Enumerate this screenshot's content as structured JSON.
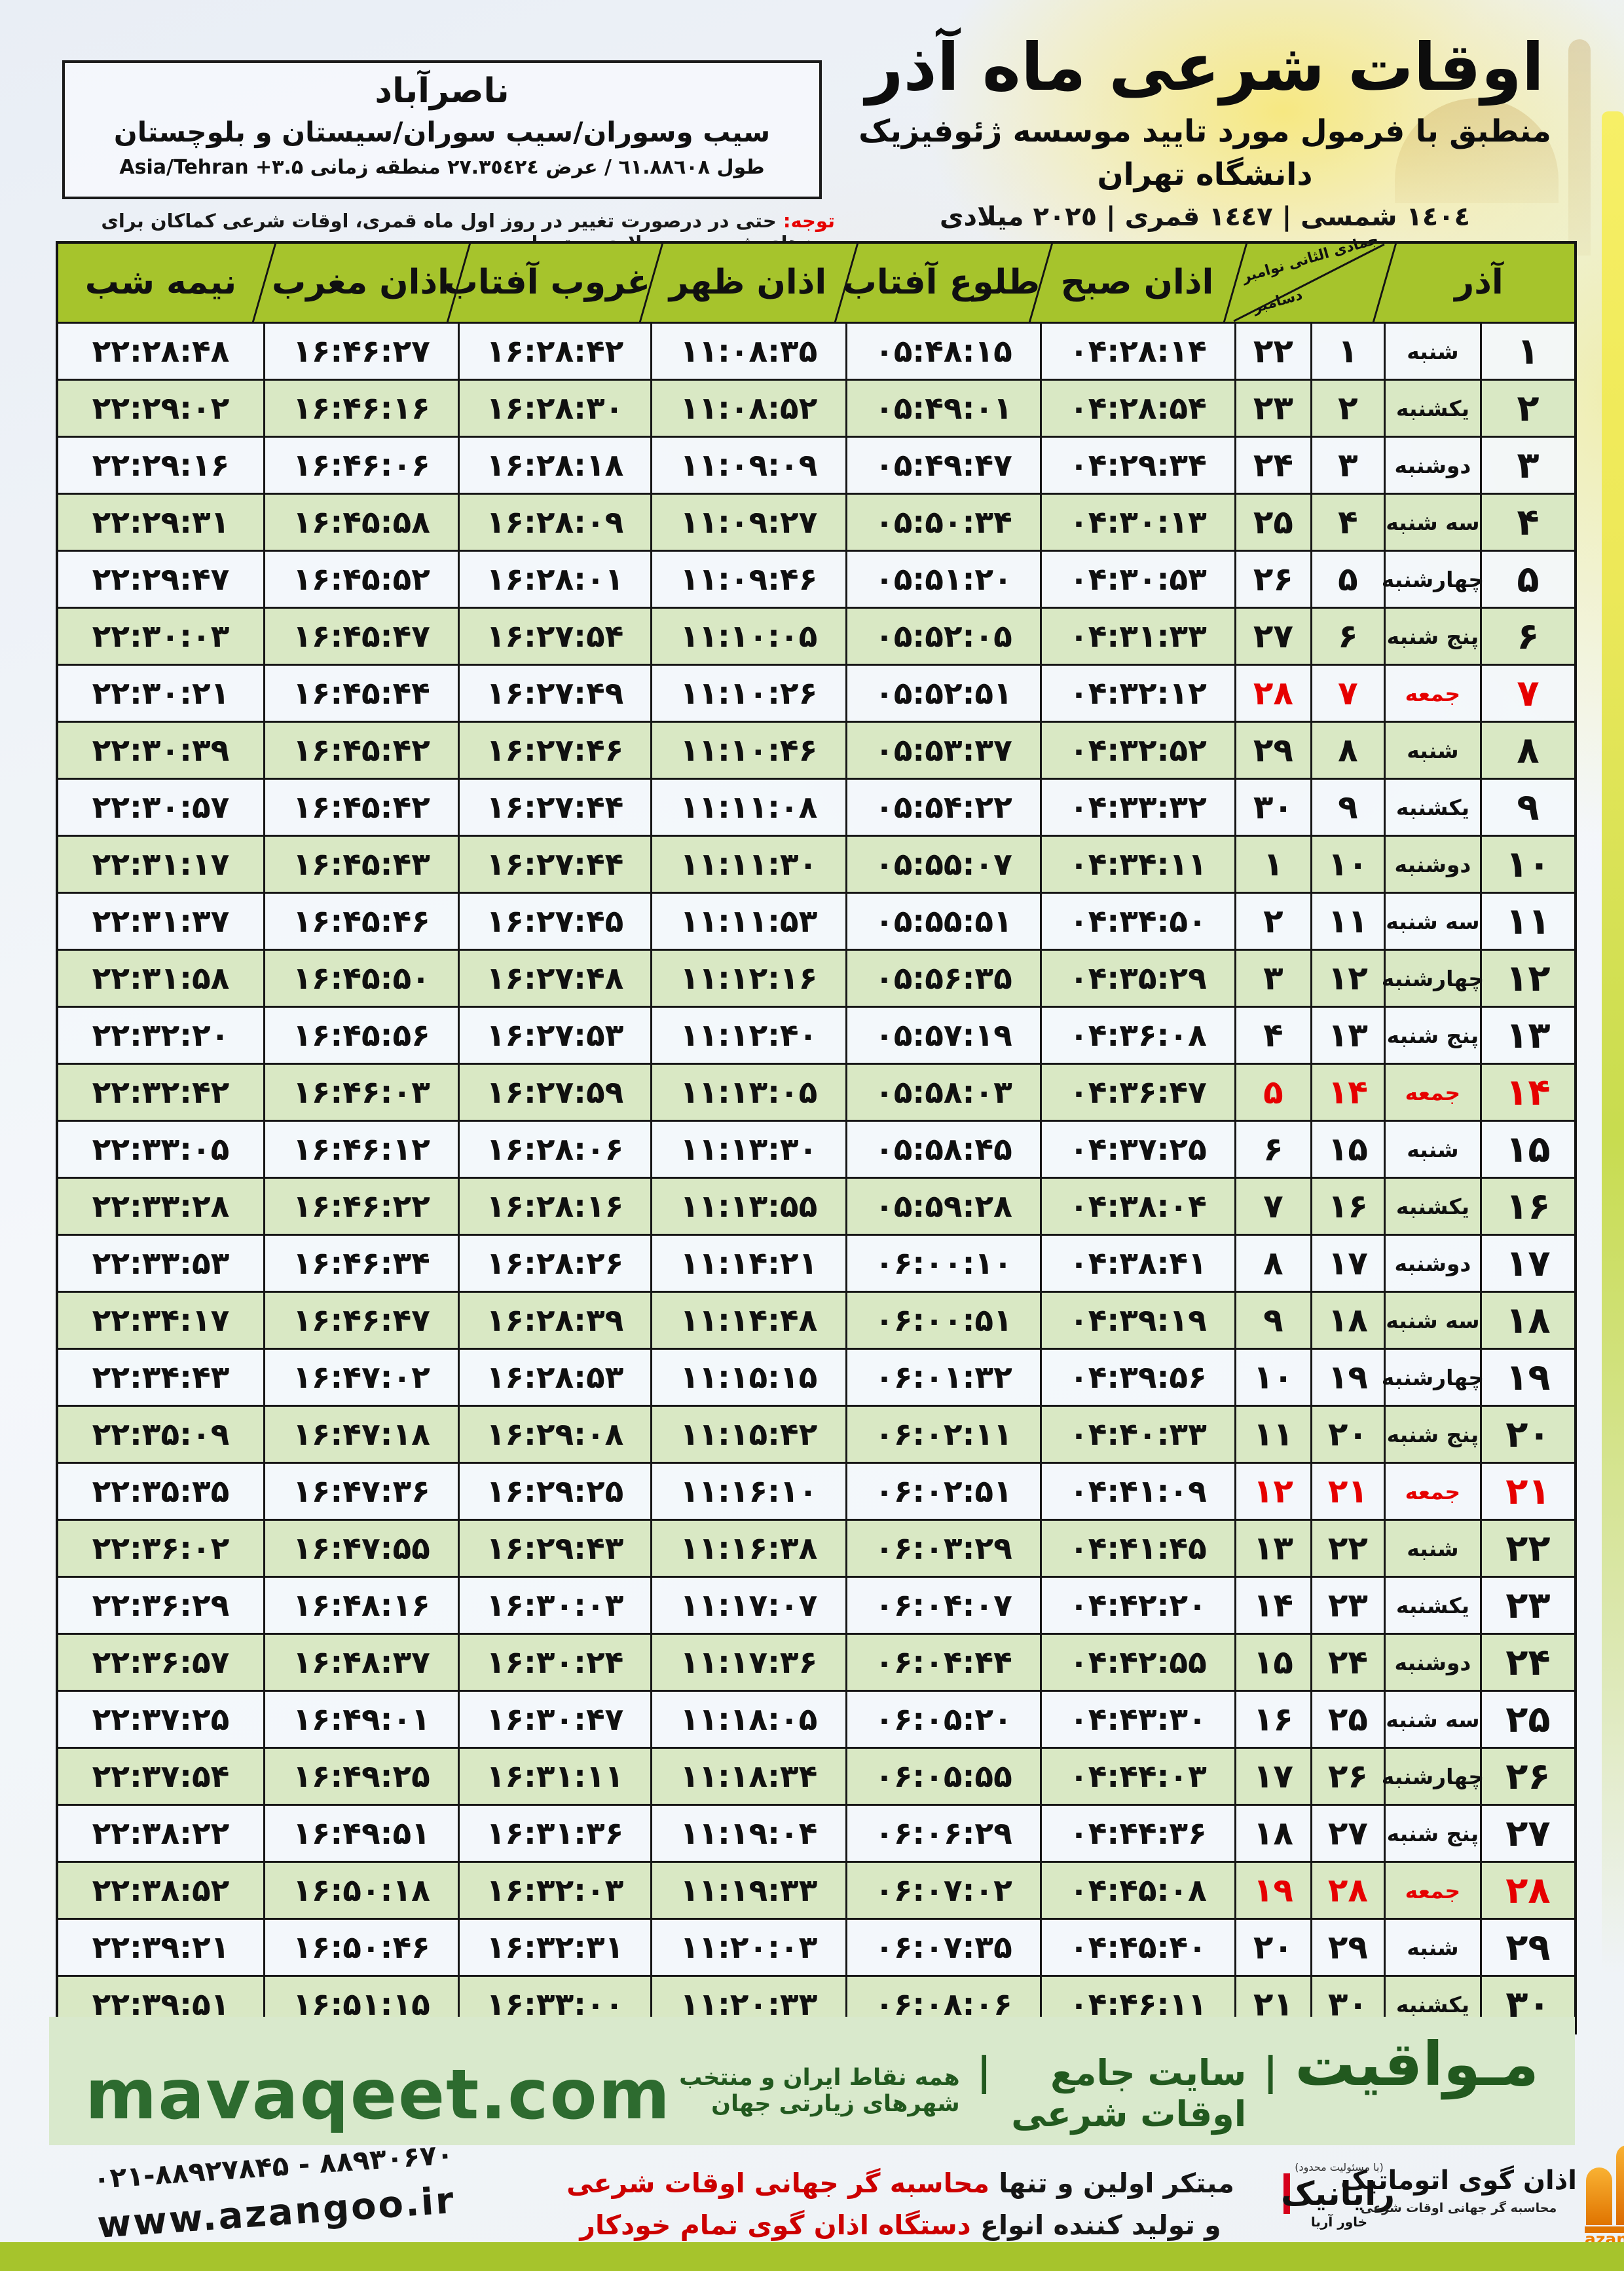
{
  "header": {
    "title": "اوقات شرعی ماه آذر",
    "subtitle": "منطبق با فرمول مورد تایید موسسه ژئوفیزیک دانشگاه تهران",
    "years": "١٤٠٤ شمسی | ١٤٤٧ قمری | ٢٠٢٥ میلادی"
  },
  "location": {
    "city": "ناصرآباد",
    "region": "سیب وسوران/سیب سوران/سیستان و بلوچستان",
    "coords": "طول ٦١.٨٨٦٠٨ / عرض ٢٧.٣٥٤٢٤ منطقه زمانی ۳.۵+ Asia/Tehran"
  },
  "note": {
    "label": "توجه:",
    "text": "حتی در درصورت تغییر در روز اول ماه قمری، اوقات شرعی کماکان برای روزهای شمسی و میلادی معتبر است."
  },
  "table": {
    "headers": {
      "azar": "آذر",
      "split_top": "جمادی الثانی نوامبر",
      "split_bottom": "دسامبر",
      "fajr": "اذان صبح",
      "sunrise": "طلوع آفتاب",
      "dhuhr": "اذان ظهر",
      "sunset": "غروب آفتاب",
      "maghrib": "اذان مغرب",
      "midnight": "نیمه شب"
    },
    "rows": [
      {
        "day": "۱",
        "weekday": "شنبه",
        "lunar": "۱",
        "greg": "۲۲",
        "fajr": "۰۴:۲۸:۱۴",
        "sunrise": "۰۵:۴۸:۱۵",
        "dhuhr": "۱۱:۰۸:۳۵",
        "sunset": "۱۶:۲۸:۴۲",
        "maghrib": "۱۶:۴۶:۲۷",
        "midnight": "۲۲:۲۸:۴۸",
        "friday": false
      },
      {
        "day": "۲",
        "weekday": "یکشنبه",
        "lunar": "۲",
        "greg": "۲۳",
        "fajr": "۰۴:۲۸:۵۴",
        "sunrise": "۰۵:۴۹:۰۱",
        "dhuhr": "۱۱:۰۸:۵۲",
        "sunset": "۱۶:۲۸:۳۰",
        "maghrib": "۱۶:۴۶:۱۶",
        "midnight": "۲۲:۲۹:۰۲",
        "friday": false
      },
      {
        "day": "۳",
        "weekday": "دوشنبه",
        "lunar": "۳",
        "greg": "۲۴",
        "fajr": "۰۴:۲۹:۳۴",
        "sunrise": "۰۵:۴۹:۴۷",
        "dhuhr": "۱۱:۰۹:۰۹",
        "sunset": "۱۶:۲۸:۱۸",
        "maghrib": "۱۶:۴۶:۰۶",
        "midnight": "۲۲:۲۹:۱۶",
        "friday": false
      },
      {
        "day": "۴",
        "weekday": "سه شنبه",
        "lunar": "۴",
        "greg": "۲۵",
        "fajr": "۰۴:۳۰:۱۳",
        "sunrise": "۰۵:۵۰:۳۴",
        "dhuhr": "۱۱:۰۹:۲۷",
        "sunset": "۱۶:۲۸:۰۹",
        "maghrib": "۱۶:۴۵:۵۸",
        "midnight": "۲۲:۲۹:۳۱",
        "friday": false
      },
      {
        "day": "۵",
        "weekday": "چهارشنبه",
        "lunar": "۵",
        "greg": "۲۶",
        "fajr": "۰۴:۳۰:۵۳",
        "sunrise": "۰۵:۵۱:۲۰",
        "dhuhr": "۱۱:۰۹:۴۶",
        "sunset": "۱۶:۲۸:۰۱",
        "maghrib": "۱۶:۴۵:۵۲",
        "midnight": "۲۲:۲۹:۴۷",
        "friday": false
      },
      {
        "day": "۶",
        "weekday": "پنج شنبه",
        "lunar": "۶",
        "greg": "۲۷",
        "fajr": "۰۴:۳۱:۳۳",
        "sunrise": "۰۵:۵۲:۰۵",
        "dhuhr": "۱۱:۱۰:۰۵",
        "sunset": "۱۶:۲۷:۵۴",
        "maghrib": "۱۶:۴۵:۴۷",
        "midnight": "۲۲:۳۰:۰۳",
        "friday": false
      },
      {
        "day": "۷",
        "weekday": "جمعه",
        "lunar": "۷",
        "greg": "۲۸",
        "fajr": "۰۴:۳۲:۱۲",
        "sunrise": "۰۵:۵۲:۵۱",
        "dhuhr": "۱۱:۱۰:۲۶",
        "sunset": "۱۶:۲۷:۴۹",
        "maghrib": "۱۶:۴۵:۴۴",
        "midnight": "۲۲:۳۰:۲۱",
        "friday": true
      },
      {
        "day": "۸",
        "weekday": "شنبه",
        "lunar": "۸",
        "greg": "۲۹",
        "fajr": "۰۴:۳۲:۵۲",
        "sunrise": "۰۵:۵۳:۳۷",
        "dhuhr": "۱۱:۱۰:۴۶",
        "sunset": "۱۶:۲۷:۴۶",
        "maghrib": "۱۶:۴۵:۴۲",
        "midnight": "۲۲:۳۰:۳۹",
        "friday": false
      },
      {
        "day": "۹",
        "weekday": "یکشنبه",
        "lunar": "۹",
        "greg": "۳۰",
        "fajr": "۰۴:۳۳:۳۲",
        "sunrise": "۰۵:۵۴:۲۲",
        "dhuhr": "۱۱:۱۱:۰۸",
        "sunset": "۱۶:۲۷:۴۴",
        "maghrib": "۱۶:۴۵:۴۲",
        "midnight": "۲۲:۳۰:۵۷",
        "friday": false
      },
      {
        "day": "۱۰",
        "weekday": "دوشنبه",
        "lunar": "۱۰",
        "greg": "۱",
        "fajr": "۰۴:۳۴:۱۱",
        "sunrise": "۰۵:۵۵:۰۷",
        "dhuhr": "۱۱:۱۱:۳۰",
        "sunset": "۱۶:۲۷:۴۴",
        "maghrib": "۱۶:۴۵:۴۳",
        "midnight": "۲۲:۳۱:۱۷",
        "friday": false
      },
      {
        "day": "۱۱",
        "weekday": "سه شنبه",
        "lunar": "۱۱",
        "greg": "۲",
        "fajr": "۰۴:۳۴:۵۰",
        "sunrise": "۰۵:۵۵:۵۱",
        "dhuhr": "۱۱:۱۱:۵۳",
        "sunset": "۱۶:۲۷:۴۵",
        "maghrib": "۱۶:۴۵:۴۶",
        "midnight": "۲۲:۳۱:۳۷",
        "friday": false
      },
      {
        "day": "۱۲",
        "weekday": "چهارشنبه",
        "lunar": "۱۲",
        "greg": "۳",
        "fajr": "۰۴:۳۵:۲۹",
        "sunrise": "۰۵:۵۶:۳۵",
        "dhuhr": "۱۱:۱۲:۱۶",
        "sunset": "۱۶:۲۷:۴۸",
        "maghrib": "۱۶:۴۵:۵۰",
        "midnight": "۲۲:۳۱:۵۸",
        "friday": false
      },
      {
        "day": "۱۳",
        "weekday": "پنج شنبه",
        "lunar": "۱۳",
        "greg": "۴",
        "fajr": "۰۴:۳۶:۰۸",
        "sunrise": "۰۵:۵۷:۱۹",
        "dhuhr": "۱۱:۱۲:۴۰",
        "sunset": "۱۶:۲۷:۵۳",
        "maghrib": "۱۶:۴۵:۵۶",
        "midnight": "۲۲:۳۲:۲۰",
        "friday": false
      },
      {
        "day": "۱۴",
        "weekday": "جمعه",
        "lunar": "۱۴",
        "greg": "۵",
        "fajr": "۰۴:۳۶:۴۷",
        "sunrise": "۰۵:۵۸:۰۳",
        "dhuhr": "۱۱:۱۳:۰۵",
        "sunset": "۱۶:۲۷:۵۹",
        "maghrib": "۱۶:۴۶:۰۳",
        "midnight": "۲۲:۳۲:۴۲",
        "friday": true
      },
      {
        "day": "۱۵",
        "weekday": "شنبه",
        "lunar": "۱۵",
        "greg": "۶",
        "fajr": "۰۴:۳۷:۲۵",
        "sunrise": "۰۵:۵۸:۴۵",
        "dhuhr": "۱۱:۱۳:۳۰",
        "sunset": "۱۶:۲۸:۰۶",
        "maghrib": "۱۶:۴۶:۱۲",
        "midnight": "۲۲:۳۳:۰۵",
        "friday": false
      },
      {
        "day": "۱۶",
        "weekday": "یکشنبه",
        "lunar": "۱۶",
        "greg": "۷",
        "fajr": "۰۴:۳۸:۰۴",
        "sunrise": "۰۵:۵۹:۲۸",
        "dhuhr": "۱۱:۱۳:۵۵",
        "sunset": "۱۶:۲۸:۱۶",
        "maghrib": "۱۶:۴۶:۲۲",
        "midnight": "۲۲:۳۳:۲۸",
        "friday": false
      },
      {
        "day": "۱۷",
        "weekday": "دوشنبه",
        "lunar": "۱۷",
        "greg": "۸",
        "fajr": "۰۴:۳۸:۴۱",
        "sunrise": "۰۶:۰۰:۱۰",
        "dhuhr": "۱۱:۱۴:۲۱",
        "sunset": "۱۶:۲۸:۲۶",
        "maghrib": "۱۶:۴۶:۳۴",
        "midnight": "۲۲:۳۳:۵۳",
        "friday": false
      },
      {
        "day": "۱۸",
        "weekday": "سه شنبه",
        "lunar": "۱۸",
        "greg": "۹",
        "fajr": "۰۴:۳۹:۱۹",
        "sunrise": "۰۶:۰۰:۵۱",
        "dhuhr": "۱۱:۱۴:۴۸",
        "sunset": "۱۶:۲۸:۳۹",
        "maghrib": "۱۶:۴۶:۴۷",
        "midnight": "۲۲:۳۴:۱۷",
        "friday": false
      },
      {
        "day": "۱۹",
        "weekday": "چهارشنبه",
        "lunar": "۱۹",
        "greg": "۱۰",
        "fajr": "۰۴:۳۹:۵۶",
        "sunrise": "۰۶:۰۱:۳۲",
        "dhuhr": "۱۱:۱۵:۱۵",
        "sunset": "۱۶:۲۸:۵۳",
        "maghrib": "۱۶:۴۷:۰۲",
        "midnight": "۲۲:۳۴:۴۳",
        "friday": false
      },
      {
        "day": "۲۰",
        "weekday": "پنج شنبه",
        "lunar": "۲۰",
        "greg": "۱۱",
        "fajr": "۰۴:۴۰:۳۳",
        "sunrise": "۰۶:۰۲:۱۱",
        "dhuhr": "۱۱:۱۵:۴۲",
        "sunset": "۱۶:۲۹:۰۸",
        "maghrib": "۱۶:۴۷:۱۸",
        "midnight": "۲۲:۳۵:۰۹",
        "friday": false
      },
      {
        "day": "۲۱",
        "weekday": "جمعه",
        "lunar": "۲۱",
        "greg": "۱۲",
        "fajr": "۰۴:۴۱:۰۹",
        "sunrise": "۰۶:۰۲:۵۱",
        "dhuhr": "۱۱:۱۶:۱۰",
        "sunset": "۱۶:۲۹:۲۵",
        "maghrib": "۱۶:۴۷:۳۶",
        "midnight": "۲۲:۳۵:۳۵",
        "friday": true
      },
      {
        "day": "۲۲",
        "weekday": "شنبه",
        "lunar": "۲۲",
        "greg": "۱۳",
        "fajr": "۰۴:۴۱:۴۵",
        "sunrise": "۰۶:۰۳:۲۹",
        "dhuhr": "۱۱:۱۶:۳۸",
        "sunset": "۱۶:۲۹:۴۳",
        "maghrib": "۱۶:۴۷:۵۵",
        "midnight": "۲۲:۳۶:۰۲",
        "friday": false
      },
      {
        "day": "۲۳",
        "weekday": "یکشنبه",
        "lunar": "۲۳",
        "greg": "۱۴",
        "fajr": "۰۴:۴۲:۲۰",
        "sunrise": "۰۶:۰۴:۰۷",
        "dhuhr": "۱۱:۱۷:۰۷",
        "sunset": "۱۶:۳۰:۰۳",
        "maghrib": "۱۶:۴۸:۱۶",
        "midnight": "۲۲:۳۶:۲۹",
        "friday": false
      },
      {
        "day": "۲۴",
        "weekday": "دوشنبه",
        "lunar": "۲۴",
        "greg": "۱۵",
        "fajr": "۰۴:۴۲:۵۵",
        "sunrise": "۰۶:۰۴:۴۴",
        "dhuhr": "۱۱:۱۷:۳۶",
        "sunset": "۱۶:۳۰:۲۴",
        "maghrib": "۱۶:۴۸:۳۷",
        "midnight": "۲۲:۳۶:۵۷",
        "friday": false
      },
      {
        "day": "۲۵",
        "weekday": "سه شنبه",
        "lunar": "۲۵",
        "greg": "۱۶",
        "fajr": "۰۴:۴۳:۳۰",
        "sunrise": "۰۶:۰۵:۲۰",
        "dhuhr": "۱۱:۱۸:۰۵",
        "sunset": "۱۶:۳۰:۴۷",
        "maghrib": "۱۶:۴۹:۰۱",
        "midnight": "۲۲:۳۷:۲۵",
        "friday": false
      },
      {
        "day": "۲۶",
        "weekday": "چهارشنبه",
        "lunar": "۲۶",
        "greg": "۱۷",
        "fajr": "۰۴:۴۴:۰۳",
        "sunrise": "۰۶:۰۵:۵۵",
        "dhuhr": "۱۱:۱۸:۳۴",
        "sunset": "۱۶:۳۱:۱۱",
        "maghrib": "۱۶:۴۹:۲۵",
        "midnight": "۲۲:۳۷:۵۴",
        "friday": false
      },
      {
        "day": "۲۷",
        "weekday": "پنج شنبه",
        "lunar": "۲۷",
        "greg": "۱۸",
        "fajr": "۰۴:۴۴:۳۶",
        "sunrise": "۰۶:۰۶:۲۹",
        "dhuhr": "۱۱:۱۹:۰۴",
        "sunset": "۱۶:۳۱:۳۶",
        "maghrib": "۱۶:۴۹:۵۱",
        "midnight": "۲۲:۳۸:۲۲",
        "friday": false
      },
      {
        "day": "۲۸",
        "weekday": "جمعه",
        "lunar": "۲۸",
        "greg": "۱۹",
        "fajr": "۰۴:۴۵:۰۸",
        "sunrise": "۰۶:۰۷:۰۲",
        "dhuhr": "۱۱:۱۹:۳۳",
        "sunset": "۱۶:۳۲:۰۳",
        "maghrib": "۱۶:۵۰:۱۸",
        "midnight": "۲۲:۳۸:۵۲",
        "friday": true
      },
      {
        "day": "۲۹",
        "weekday": "شنبه",
        "lunar": "۲۹",
        "greg": "۲۰",
        "fajr": "۰۴:۴۵:۴۰",
        "sunrise": "۰۶:۰۷:۳۵",
        "dhuhr": "۱۱:۲۰:۰۳",
        "sunset": "۱۶:۳۲:۳۱",
        "maghrib": "۱۶:۵۰:۴۶",
        "midnight": "۲۲:۳۹:۲۱",
        "friday": false
      },
      {
        "day": "۳۰",
        "weekday": "یکشنبه",
        "lunar": "۳۰",
        "greg": "۲۱",
        "fajr": "۰۴:۴۶:۱۱",
        "sunrise": "۰۶:۰۸:۰۶",
        "dhuhr": "۱۱:۲۰:۳۳",
        "sunset": "۱۶:۳۳:۰۰",
        "maghrib": "۱۶:۵۱:۱۵",
        "midnight": "۲۲:۳۹:۵۱",
        "friday": false
      }
    ]
  },
  "footer_bar": {
    "site_url": "mavaqeet.com",
    "brand": "مـواقیت",
    "separator": "|",
    "tagline1": "سایت جامع اوقات شرعی",
    "tagline2": "همه نقاط ایران و منتخب شهرهای زیارتی جهان"
  },
  "footer_bottom": {
    "phones": "۰۲۱-۸۸۹۲۷۸۴۵ - ۸۸۹۳۰۶۷۰",
    "website": "www.azangoo.ir",
    "promo1_black": "مبتکر اولین و تنها ",
    "promo1_red": "محاسبه گر جهانی اوقات شرعی",
    "promo2_black": "و تولید کننده انواع ",
    "promo2_red": "دستگاه اذان گوی تمام خودکار ماهواره ای",
    "rayanik_note": "(با مسئولیت محدود)",
    "rayanik_name": "رایانیک",
    "rayanik_sub": "خاور آریا",
    "azangoo_title": "اذان گوی اتوماتیک",
    "azangoo_sub": "محاسبه گر جهانی اوقات شرعی",
    "azangoo_latin": "azangoo"
  },
  "colors": {
    "header_green": "#a6c42c",
    "row_green": "#d9e8c4",
    "row_light": "#f3f7fb",
    "friday_red": "#e60000",
    "footer_green_bg": "#d9e9cc",
    "footer_green_text": "#2d6b2f",
    "promo_red": "#cc0000",
    "azangoo_orange": "#ef7d00"
  }
}
